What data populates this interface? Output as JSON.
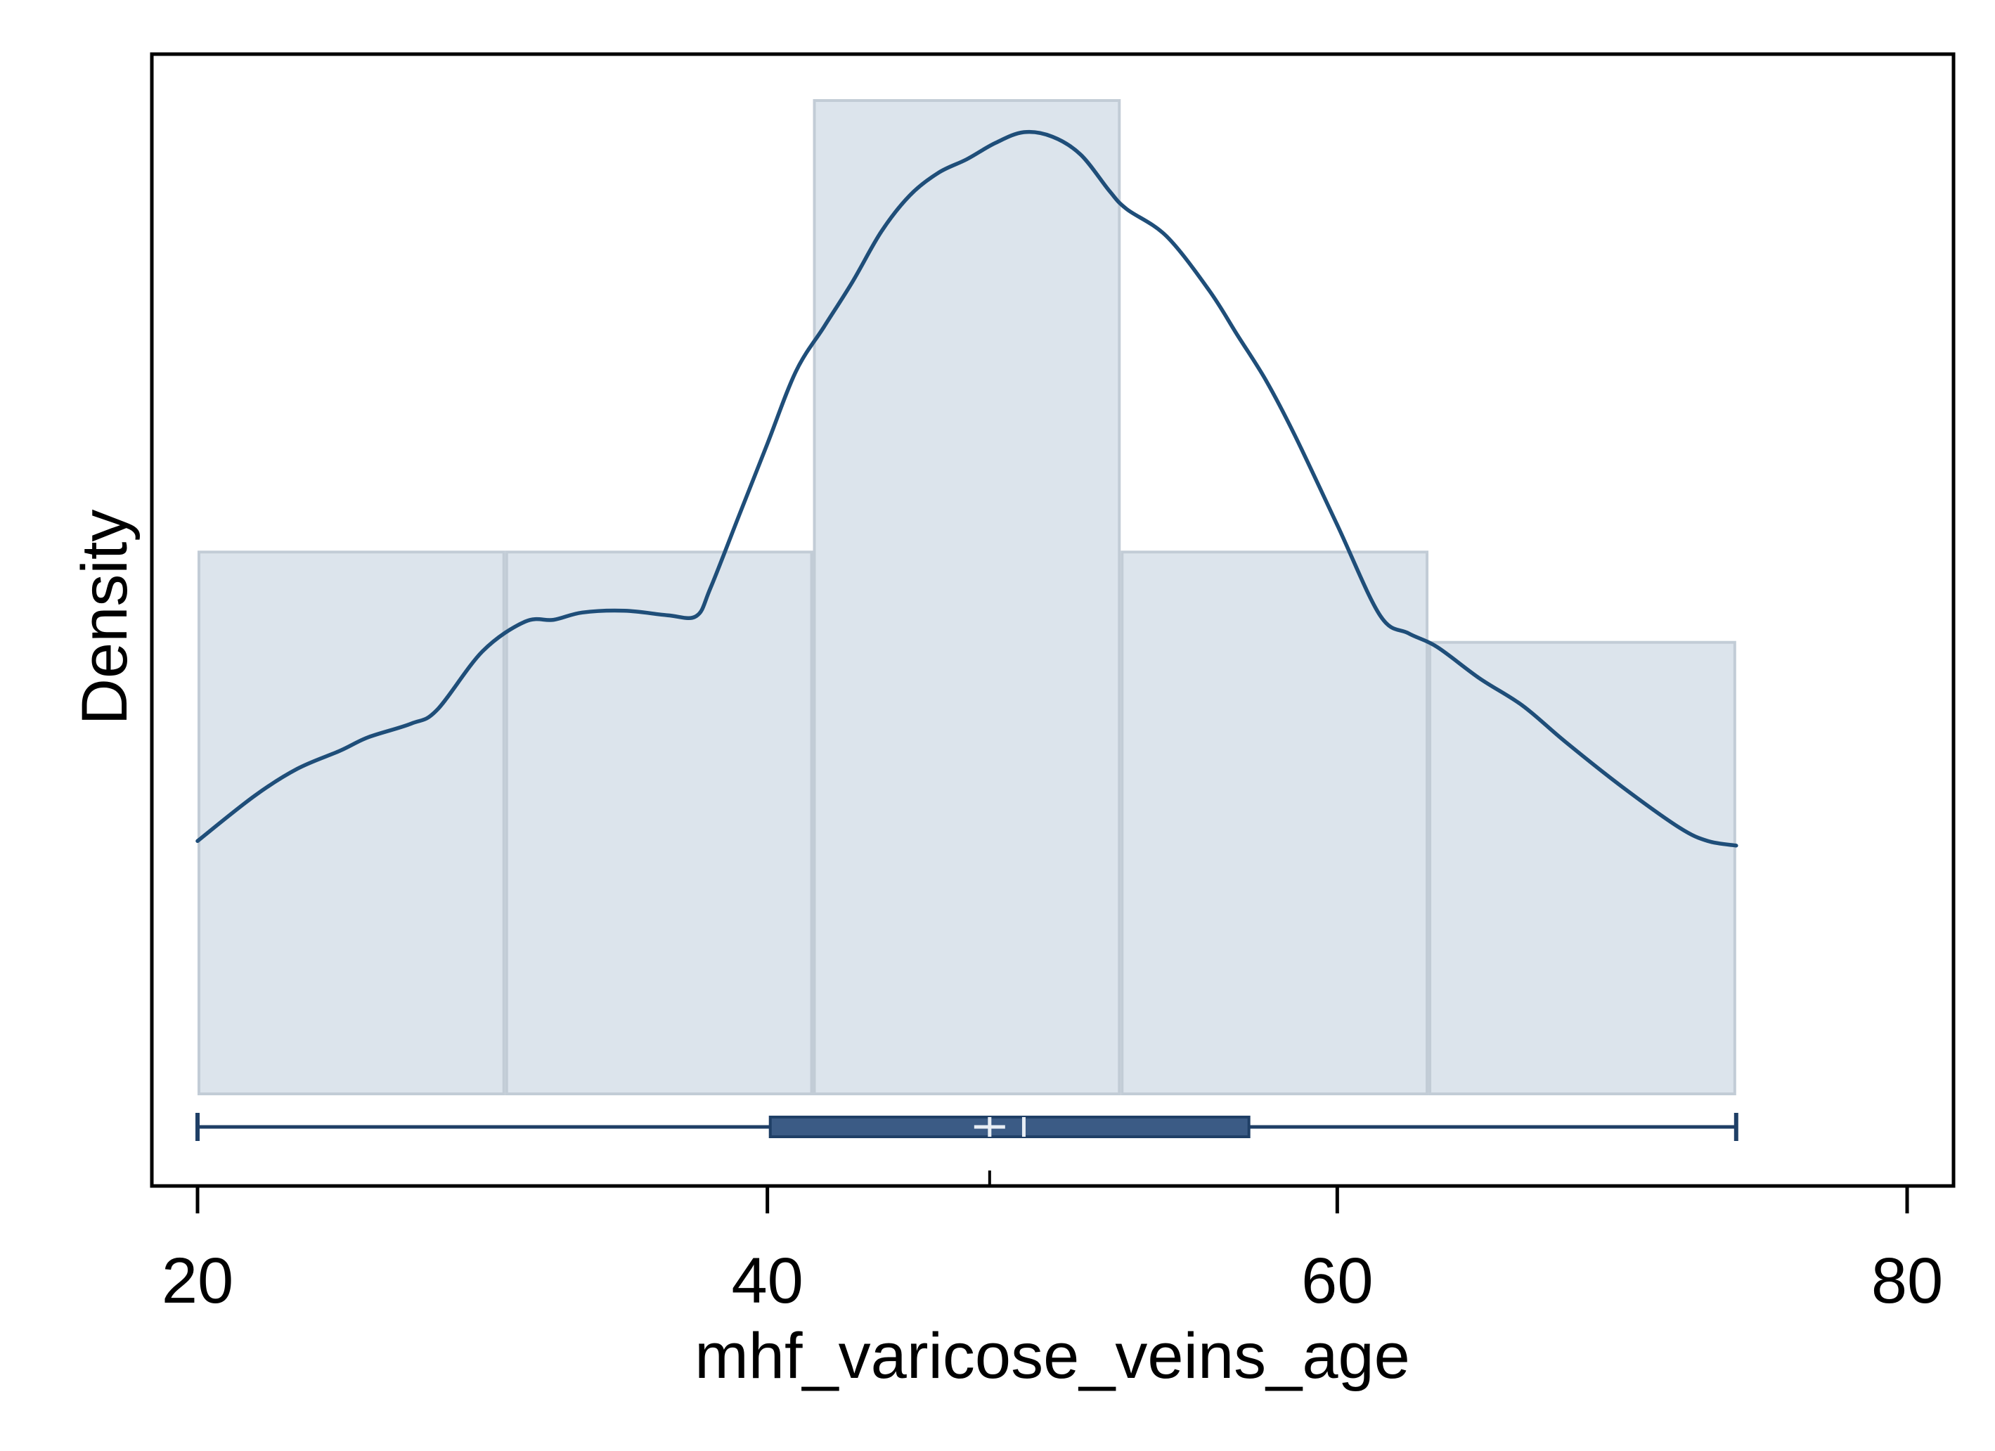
{
  "chart_data": {
    "type": "histogram",
    "title": "",
    "xlabel": "mhf_varicose_veins_age",
    "ylabel": "Density",
    "xlim": [
      18.3,
      81.6
    ],
    "x_ticks": [
      20,
      40,
      60,
      80
    ],
    "ylim": [
      0,
      1.22
    ],
    "y_ticks_shown": false,
    "grid": false,
    "legend": "none",
    "histogram": {
      "bins": [
        {
          "start": 20.0,
          "end": 30.8,
          "height": 0.6
        },
        {
          "start": 30.8,
          "end": 41.6,
          "height": 0.6
        },
        {
          "start": 41.6,
          "end": 52.4,
          "height": 1.1
        },
        {
          "start": 52.4,
          "end": 63.2,
          "height": 0.6
        },
        {
          "start": 63.2,
          "end": 74.0,
          "height": 0.5
        }
      ]
    },
    "density_curve": {
      "x": [
        20,
        22,
        23.5,
        25,
        26,
        27.5,
        28.4,
        30,
        31.5,
        32.5,
        33.5,
        35,
        36.5,
        37.5,
        38,
        39,
        40,
        41,
        42,
        43,
        44,
        45,
        46,
        47,
        48,
        49,
        50,
        51,
        52,
        52.6,
        54,
        55.5,
        56.5,
        57.5,
        58.5,
        60,
        61.5,
        62.5,
        63.5,
        65,
        66.5,
        68,
        70,
        72,
        73,
        74
      ],
      "y": [
        0.28,
        0.33,
        0.36,
        0.38,
        0.395,
        0.41,
        0.425,
        0.49,
        0.523,
        0.525,
        0.533,
        0.535,
        0.53,
        0.529,
        0.56,
        0.64,
        0.72,
        0.8,
        0.85,
        0.9,
        0.955,
        0.995,
        1.02,
        1.035,
        1.053,
        1.065,
        1.06,
        1.04,
        1.0,
        0.98,
        0.95,
        0.89,
        0.84,
        0.79,
        0.73,
        0.63,
        0.53,
        0.51,
        0.495,
        0.46,
        0.43,
        0.39,
        0.34,
        0.295,
        0.28,
        0.275
      ]
    },
    "boxplot": {
      "min": 20,
      "q1": 40.1,
      "median": 49.0,
      "mean": 47.8,
      "q3": 56.9,
      "max": 74
    },
    "colors": {
      "bar_fill": "#dce4ec",
      "bar_edge": "#c2ccd6",
      "curve": "#1f4e79",
      "box_fill": "#3b5b85",
      "box_edge": "#1f3f66",
      "marker": "#e8eef5"
    }
  }
}
